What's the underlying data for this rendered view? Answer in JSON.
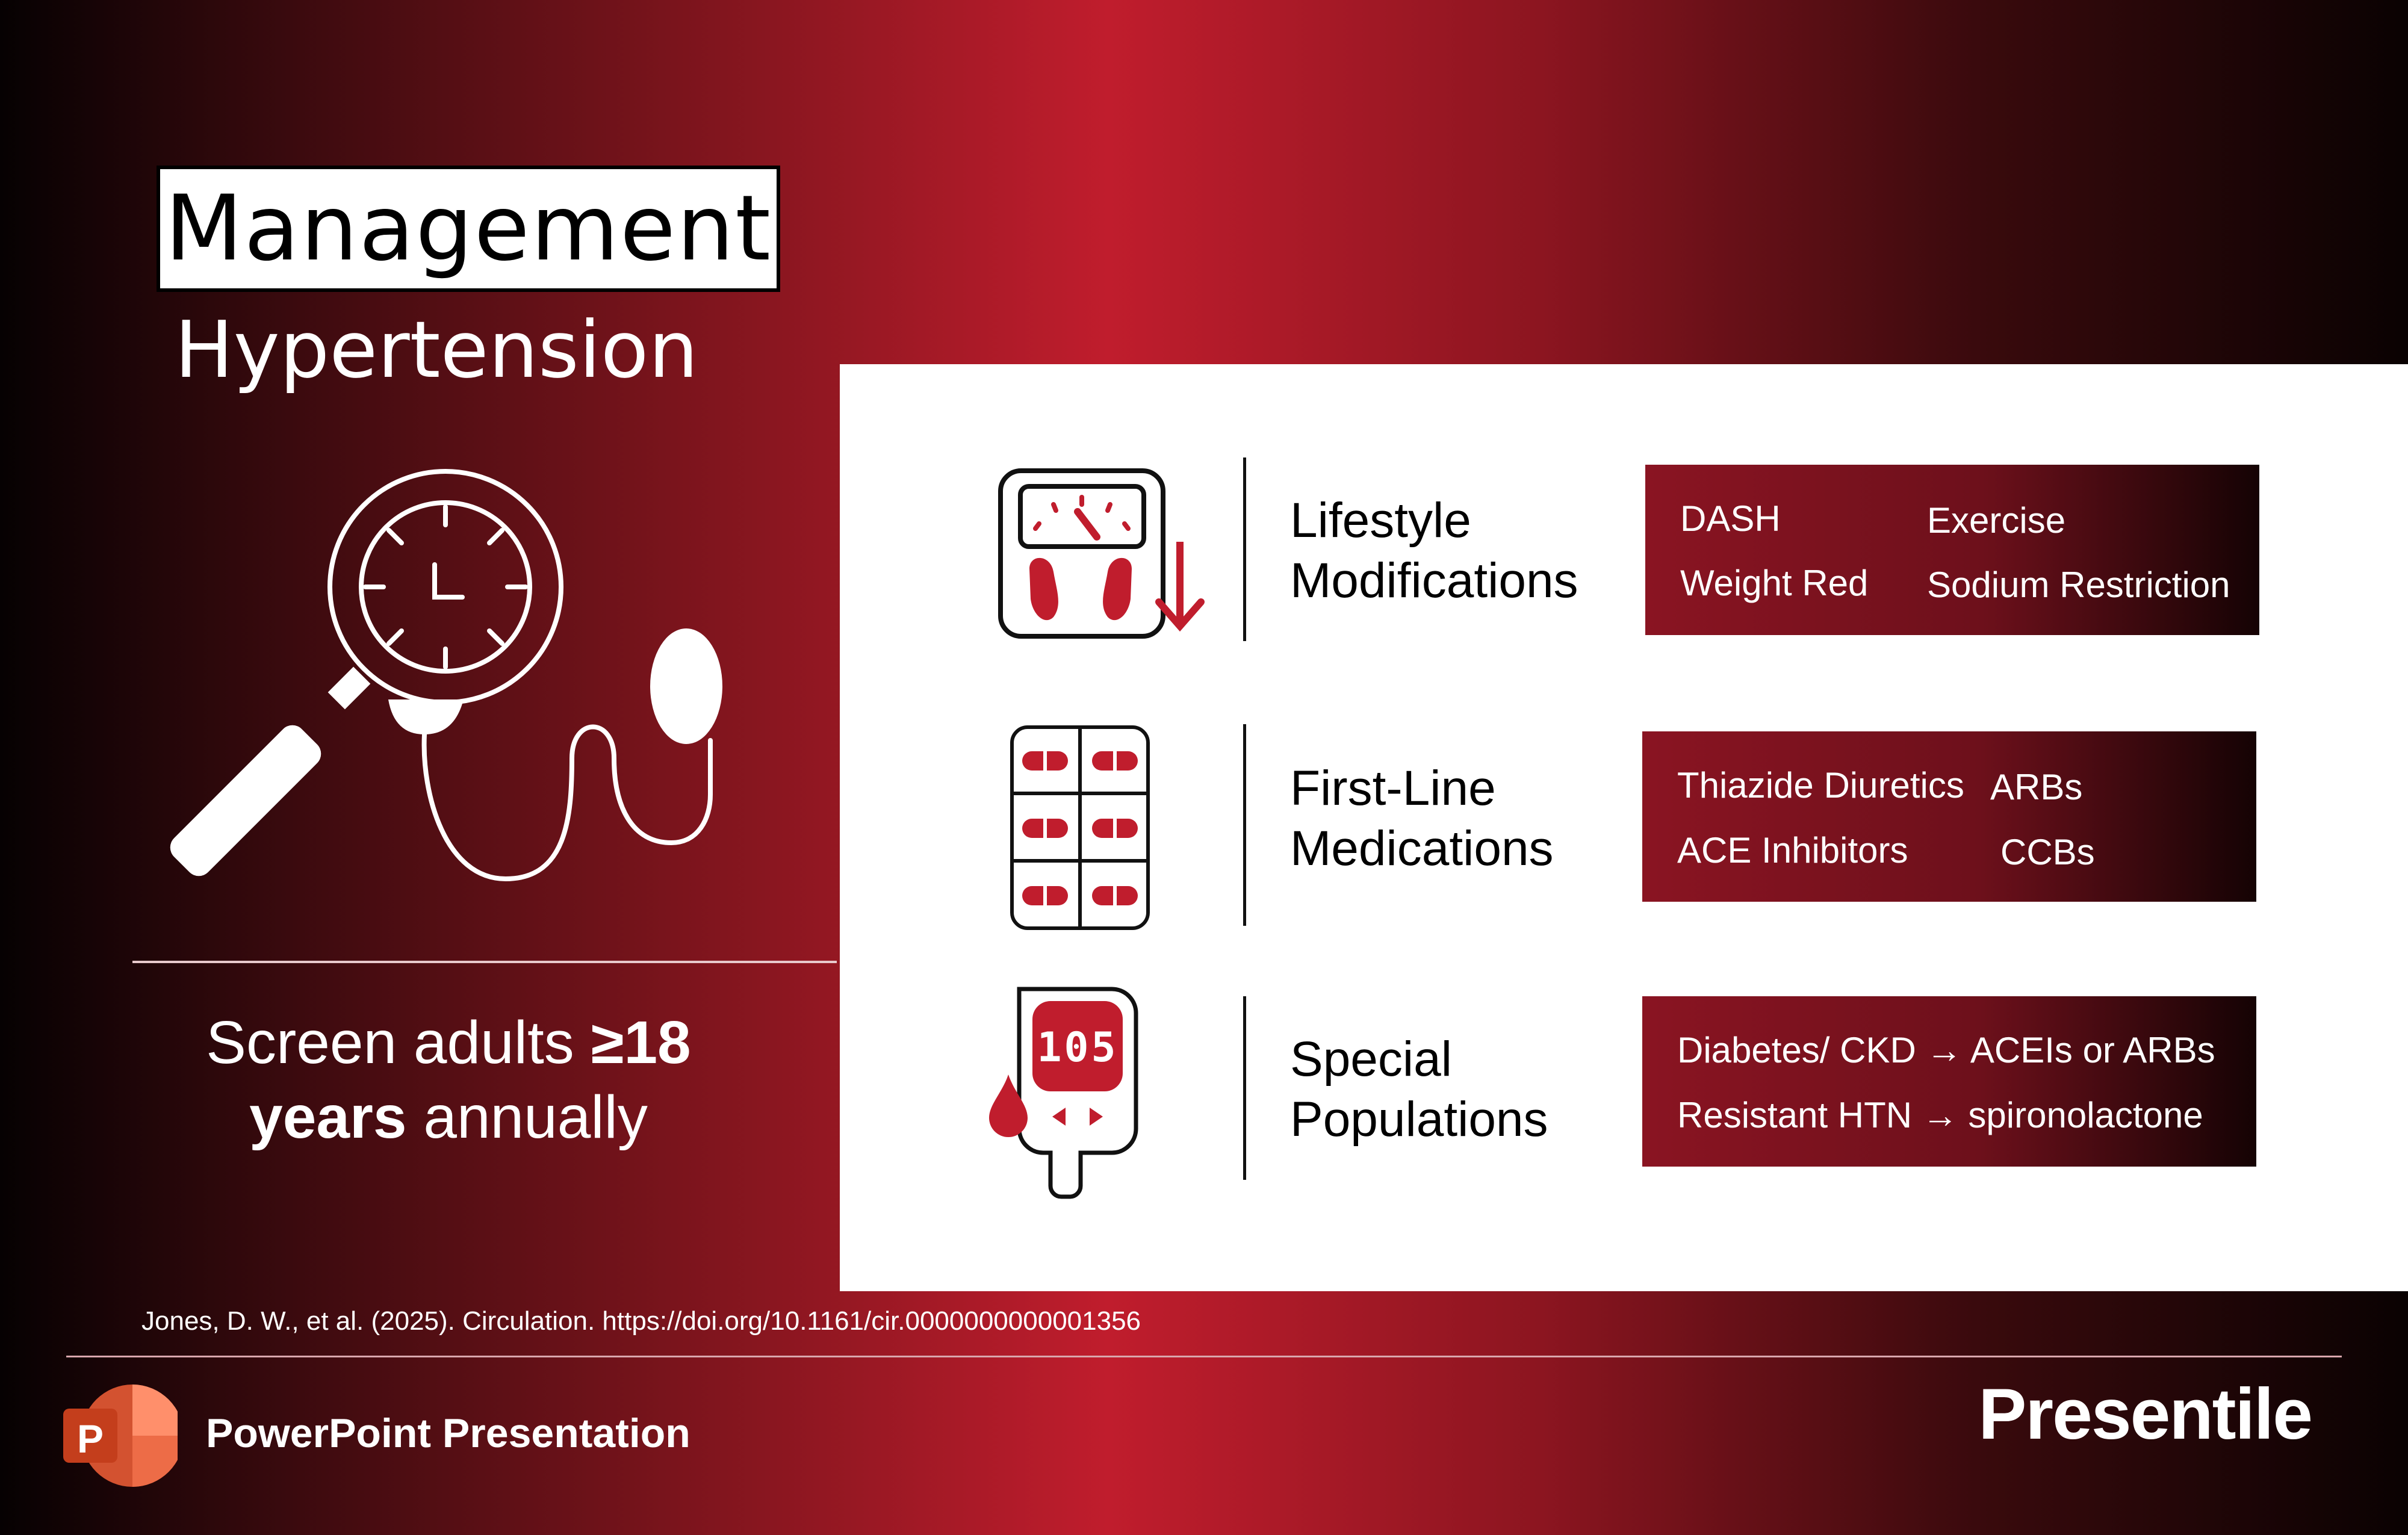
{
  "title": "Management",
  "subtitle": "Hypertension",
  "screening": {
    "line1_prefix": "Screen adults ",
    "line1_bold": "≥18",
    "line2_bold": "years",
    "line2_suffix": " annually"
  },
  "rows": [
    {
      "icon": "scale-weight-down-icon",
      "label_line1": "Lifestyle",
      "label_line2": "Modifications",
      "items": [
        "DASH",
        "Exercise",
        "Weight Red",
        "Sodium Restriction"
      ]
    },
    {
      "icon": "pill-blister-icon",
      "label_line1": "First-Line",
      "label_line2": "Medications",
      "items": [
        "Thiazide Diuretics",
        "ARBs",
        "ACE Inhibitors",
        "CCBs"
      ]
    },
    {
      "icon": "glucose-meter-icon",
      "meter_reading": "105",
      "label_line1": "Special",
      "label_line2": "Populations",
      "items": [
        "Diabetes/ CKD →  ACEIs or ARBs",
        "Resistant HTN → spironolactone"
      ]
    }
  ],
  "citation": "Jones, D. W., et al. (2025). Circulation. https://doi.org/10.1161/cir.0000000000001356",
  "footer": {
    "app_label": "PowerPoint Presentation",
    "app_icon_letter": "P",
    "brand": "Presentile"
  },
  "colors": {
    "accent_red": "#c01d2d",
    "dark_red": "#6d101b",
    "panel": "#ffffff"
  }
}
